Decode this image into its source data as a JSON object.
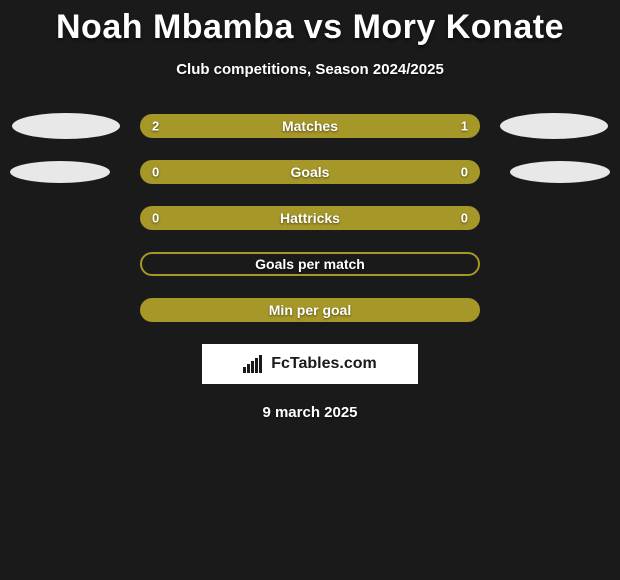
{
  "title": "Noah Mbamba vs Mory Konate",
  "subtitle": "Club competitions, Season 2024/2025",
  "date": "9 march 2025",
  "logo_text": "FcTables.com",
  "colors": {
    "background": "#1a1a1a",
    "bar_fill": "#a59728",
    "bar_border": "#a59728",
    "oval": "#e8e8e8",
    "text": "#ffffff"
  },
  "rows": [
    {
      "label": "Matches",
      "left_value": "2",
      "right_value": "1",
      "left_fill_pct": 66.7,
      "right_fill_pct": 33.3,
      "has_left_oval": true,
      "has_right_oval": true,
      "oval_size": 1
    },
    {
      "label": "Goals",
      "left_value": "0",
      "right_value": "0",
      "left_fill_pct": 100,
      "right_fill_pct": 0,
      "has_left_oval": true,
      "has_right_oval": true,
      "oval_size": 2
    },
    {
      "label": "Hattricks",
      "left_value": "0",
      "right_value": "0",
      "left_fill_pct": 100,
      "right_fill_pct": 0,
      "has_left_oval": false,
      "has_right_oval": false
    },
    {
      "label": "Goals per match",
      "left_value": "",
      "right_value": "",
      "left_fill_pct": 0,
      "right_fill_pct": 0,
      "has_left_oval": false,
      "has_right_oval": false,
      "border_only": true
    },
    {
      "label": "Min per goal",
      "left_value": "",
      "right_value": "",
      "left_fill_pct": 100,
      "right_fill_pct": 0,
      "has_left_oval": false,
      "has_right_oval": false
    }
  ]
}
